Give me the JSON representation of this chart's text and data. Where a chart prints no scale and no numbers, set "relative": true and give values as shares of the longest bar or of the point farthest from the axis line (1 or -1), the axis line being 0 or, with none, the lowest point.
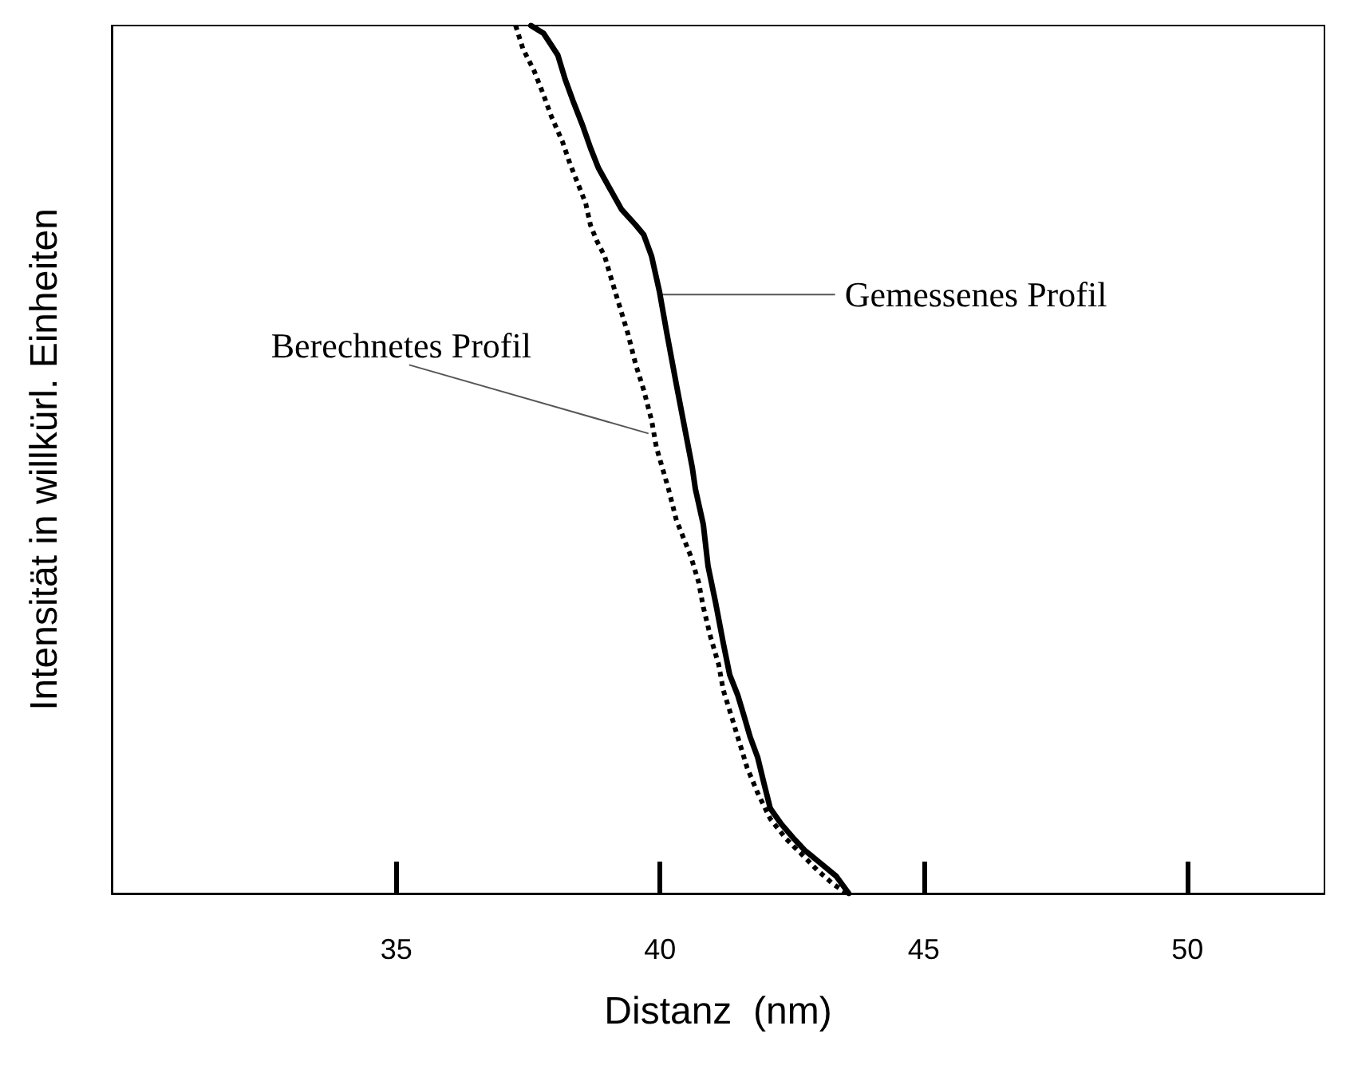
{
  "chart_data": {
    "type": "line",
    "xlabel": "Distanz  (nm)",
    "ylabel": "Intensität in willkürl. Einheiten",
    "relative": true,
    "xlim": [
      29.6,
      52.6
    ],
    "xticks": [
      35,
      40,
      45,
      50
    ],
    "grid": false,
    "marker": "none",
    "series": [
      {
        "color": "#000000",
        "line_style": "solid",
        "x": [
          37.55,
          37.79,
          38.06,
          38.2,
          38.35,
          38.53,
          38.68,
          38.83,
          39.04,
          39.27,
          39.54,
          39.69,
          39.84,
          39.99,
          40.13,
          40.31,
          40.61,
          40.67,
          40.82,
          40.91,
          41.05,
          41.2,
          41.32,
          41.47,
          41.59,
          41.71,
          41.85,
          41.97,
          42.09,
          42.3,
          42.54,
          42.74,
          42.98,
          43.34,
          43.58
        ],
        "values": [
          1,
          0.991,
          0.966,
          0.938,
          0.913,
          0.885,
          0.859,
          0.836,
          0.813,
          0.788,
          0.77,
          0.759,
          0.734,
          0.693,
          0.645,
          0.586,
          0.491,
          0.466,
          0.425,
          0.377,
          0.336,
          0.288,
          0.252,
          0.229,
          0.205,
          0.18,
          0.157,
          0.127,
          0.098,
          0.08,
          0.063,
          0.05,
          0.038,
          0.02,
          0
        ]
      },
      {
        "color": "#000000",
        "line_style": "dotted",
        "x": [
          37.26,
          37.4,
          37.61,
          37.79,
          37.94,
          38.15,
          38.29,
          38.44,
          38.59,
          38.68,
          38.8,
          38.95,
          39.09,
          39.24,
          39.39,
          39.54,
          39.69,
          39.84,
          39.93,
          40.16,
          40.31,
          40.58,
          40.73,
          40.82,
          40.96,
          41.11,
          41.2,
          41.35,
          41.5,
          41.65,
          41.85,
          42.09,
          42.39,
          42.69,
          42.98,
          43.28,
          43.55
        ],
        "values": [
          1,
          0.973,
          0.948,
          0.92,
          0.895,
          0.866,
          0.841,
          0.818,
          0.795,
          0.77,
          0.752,
          0.734,
          0.705,
          0.675,
          0.645,
          0.609,
          0.58,
          0.545,
          0.514,
          0.466,
          0.43,
          0.389,
          0.359,
          0.33,
          0.295,
          0.264,
          0.234,
          0.205,
          0.175,
          0.145,
          0.116,
          0.086,
          0.063,
          0.045,
          0.027,
          0.011,
          0
        ]
      }
    ],
    "annotations": [
      {
        "text": "Gemessenes Profil",
        "x": 39.99,
        "y": 0.69
      },
      {
        "text": "Berechnetes Profil",
        "x": 39.78,
        "y": 0.53
      }
    ]
  }
}
